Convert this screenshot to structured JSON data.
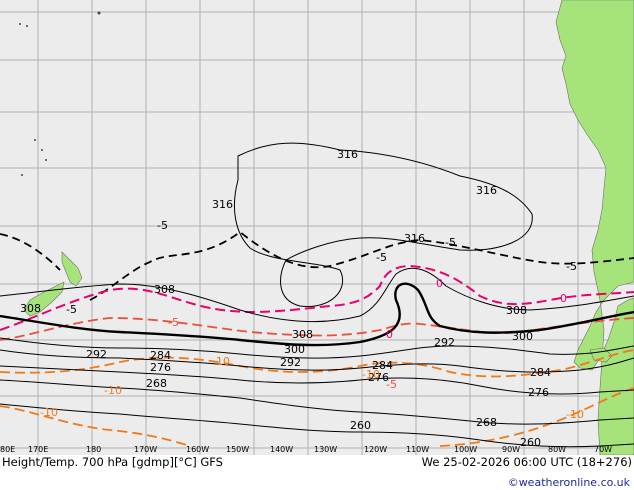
{
  "map": {
    "title": "Height/Temp. 700 hPa [gdmp][°C] GFS",
    "datetime": "We 25-02-2026 06:00 UTC (18+276)",
    "credit": "©weatheronline.co.uk",
    "longitude_labels": [
      "80E",
      "170E",
      "180",
      "170W",
      "160W",
      "150W",
      "140W",
      "130W",
      "120W",
      "110W",
      "100W",
      "90W",
      "80W",
      "70W"
    ],
    "height_contour_labels": [
      "316",
      "316",
      "316",
      "316",
      "308",
      "308",
      "308",
      "308",
      "300",
      "300",
      "292",
      "292",
      "292",
      "284",
      "284",
      "284",
      "276",
      "276",
      "276",
      "268",
      "268",
      "260",
      "260"
    ],
    "temperature_contour_labels": [
      "-5",
      "-5",
      "-5",
      "-5",
      "-5",
      "0",
      "0",
      "0",
      "-5",
      "-10",
      "-10",
      "-10",
      "-10",
      "-5",
      "-10"
    ],
    "colors": {
      "ocean": "#ececec",
      "land": "#a6e37a",
      "grid": "#b0b0b0",
      "height_contour": "#000000",
      "temp_cold": "#e8006e",
      "temp_mid": "#e8503c",
      "temp_warm": "#f07a1a"
    }
  }
}
